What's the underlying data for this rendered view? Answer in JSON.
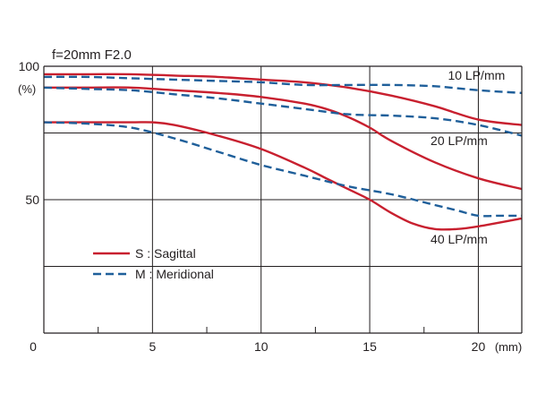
{
  "chart_data": {
    "type": "line",
    "title": "f=20mm   F2.0",
    "xlabel": "",
    "ylabel": "",
    "xunit": "(mm)",
    "yunit": "(%)",
    "xlim": [
      0,
      22
    ],
    "ylim": [
      0,
      100
    ],
    "grid": true,
    "x_major_ticks": [
      {
        "value": 0,
        "label": "0"
      },
      {
        "value": 5,
        "label": "5"
      },
      {
        "value": 10,
        "label": "10"
      },
      {
        "value": 15,
        "label": "15"
      },
      {
        "value": 20,
        "label": "20"
      }
    ],
    "x_minor_ticks": [
      2.5,
      7.5,
      12.5,
      17.5
    ],
    "y_grid": [
      25,
      50,
      75
    ],
    "y_tick_labels": [
      {
        "value": 100,
        "label": "100"
      },
      {
        "value": 50,
        "label": "50"
      }
    ],
    "legend": {
      "placement": "lower-left",
      "entries": [
        {
          "label": "S : Sagittal",
          "style": "solid",
          "color": "#c8202f"
        },
        {
          "label": "M : Meridional",
          "style": "dashed",
          "color": "#1f5f9a"
        }
      ]
    },
    "annotations": [
      {
        "text": "10 LP/mm",
        "x": 18.6,
        "y": 95
      },
      {
        "text": "20 LP/mm",
        "x": 17.8,
        "y": 70.5
      },
      {
        "text": "40 LP/mm",
        "x": 17.8,
        "y": 33.5
      }
    ],
    "series": [
      {
        "group": "10 LP/mm",
        "type": "S",
        "style": "solid",
        "color": "#c8202f",
        "x": [
          0,
          2,
          4,
          6,
          8,
          10,
          12,
          14,
          16,
          18,
          20,
          22
        ],
        "y": [
          97,
          97,
          97,
          96.5,
          96,
          95,
          94,
          92,
          89,
          85,
          80,
          78
        ]
      },
      {
        "group": "10 LP/mm",
        "type": "M",
        "style": "dashed",
        "color": "#1f5f9a",
        "x": [
          0,
          2,
          4,
          6,
          8,
          10,
          12,
          14,
          16,
          18,
          20,
          22
        ],
        "y": [
          96,
          96,
          95.5,
          95,
          94.5,
          94,
          93,
          93,
          93,
          92.5,
          91,
          90
        ]
      },
      {
        "group": "20 LP/mm",
        "type": "S",
        "style": "solid",
        "color": "#c8202f",
        "x": [
          0,
          2,
          4,
          6,
          8,
          10,
          12,
          13,
          14,
          15,
          16,
          18,
          20,
          22
        ],
        "y": [
          92,
          92,
          92,
          91,
          90,
          88.5,
          86,
          84,
          81,
          77,
          72,
          64,
          58,
          54
        ]
      },
      {
        "group": "20 LP/mm",
        "type": "M",
        "style": "dashed",
        "color": "#1f5f9a",
        "x": [
          0,
          2,
          4,
          6,
          8,
          10,
          12,
          14,
          16,
          18,
          20,
          22
        ],
        "y": [
          92,
          91.5,
          91,
          89.5,
          88,
          86,
          84,
          82,
          81.5,
          80.5,
          78,
          74
        ]
      },
      {
        "group": "40 LP/mm",
        "type": "S",
        "style": "solid",
        "color": "#c8202f",
        "x": [
          0,
          2,
          4,
          5,
          6,
          8,
          10,
          12,
          13,
          14,
          15,
          16,
          17,
          18,
          19,
          20,
          22
        ],
        "y": [
          79,
          79,
          79,
          79,
          78,
          74,
          69,
          62,
          58,
          54,
          50,
          45,
          41,
          39,
          39,
          40,
          43
        ]
      },
      {
        "group": "40 LP/mm",
        "type": "M",
        "style": "dashed",
        "color": "#1f5f9a",
        "x": [
          0,
          2,
          4,
          6,
          8,
          10,
          12,
          14,
          16,
          18,
          19,
          20,
          21,
          22
        ],
        "y": [
          79,
          78.5,
          77,
          73,
          68,
          63,
          59,
          55,
          52,
          48,
          46,
          44,
          44,
          44
        ]
      }
    ]
  }
}
